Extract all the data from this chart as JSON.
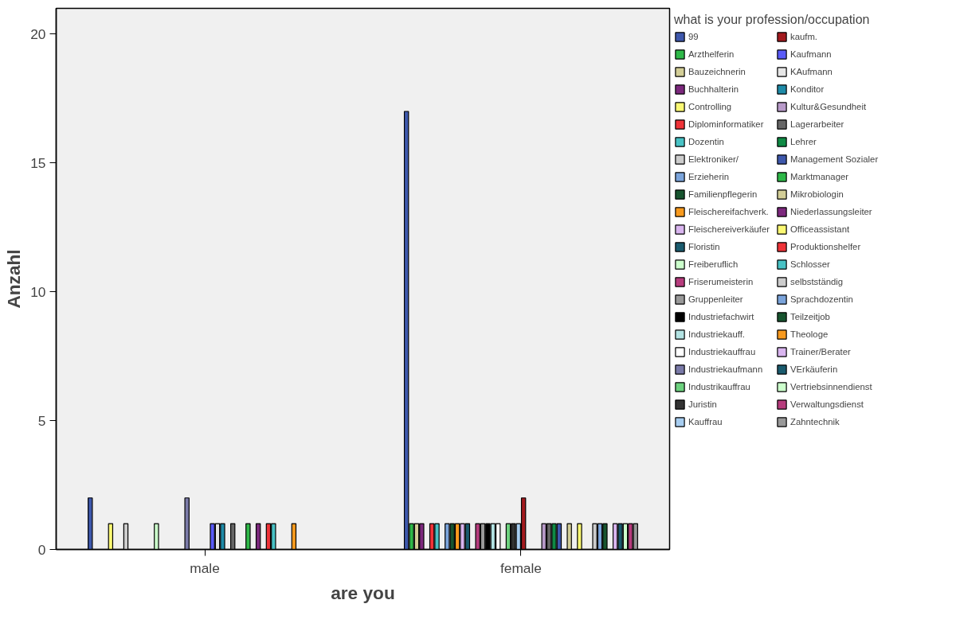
{
  "chart_data": {
    "type": "bar",
    "xlabel": "are you",
    "ylabel": "Anzahl",
    "legend_title": "what is your profession/occupation",
    "legend": "right",
    "categories": [
      "male",
      "female"
    ],
    "ylim": [
      0,
      21
    ],
    "yticks": [
      0,
      5,
      10,
      15,
      20
    ],
    "series": [
      {
        "name": "99",
        "color": "#3e58ac",
        "values": [
          2,
          17
        ]
      },
      {
        "name": "Arzthelferin",
        "color": "#2eb848",
        "values": [
          null,
          1
        ]
      },
      {
        "name": "Bauzeichnerin",
        "color": "#d3ce97",
        "values": [
          null,
          1
        ]
      },
      {
        "name": "Buchhalterin",
        "color": "#7c287d",
        "values": [
          null,
          1
        ]
      },
      {
        "name": "Controlling",
        "color": "#fbf873",
        "values": [
          1,
          null
        ]
      },
      {
        "name": "Diplominformatiker",
        "color": "#ef3338",
        "values": [
          null,
          1
        ]
      },
      {
        "name": "Dozentin",
        "color": "#48c2c5",
        "values": [
          null,
          1
        ]
      },
      {
        "name": "Elektroniker/",
        "color": "#cccccc",
        "values": [
          1,
          null
        ]
      },
      {
        "name": "Erzieherin",
        "color": "#7ba4db",
        "values": [
          null,
          1
        ]
      },
      {
        "name": "Familienpflegerin",
        "color": "#17542f",
        "values": [
          null,
          1
        ]
      },
      {
        "name": "Fleischereifachverk.",
        "color": "#f89a1e",
        "values": [
          null,
          1
        ]
      },
      {
        "name": "Fleischereiverkäufer",
        "color": "#d9b5ef",
        "values": [
          null,
          1
        ]
      },
      {
        "name": "Floristin",
        "color": "#1a5b6e",
        "values": [
          null,
          1
        ]
      },
      {
        "name": "Freiberuflich",
        "color": "#ccffcc",
        "values": [
          1,
          null
        ]
      },
      {
        "name": "Friserumeisterin",
        "color": "#b73c7d",
        "values": [
          null,
          1
        ]
      },
      {
        "name": "Gruppenleiter",
        "color": "#999999",
        "values": [
          null,
          1
        ]
      },
      {
        "name": "Industriefachwirt",
        "color": "#000000",
        "values": [
          null,
          1
        ]
      },
      {
        "name": "Industriekauff.",
        "color": "#b3e3e3",
        "values": [
          null,
          1
        ]
      },
      {
        "name": "Industriekauffrau",
        "color": "#ffffff",
        "values": [
          null,
          1
        ]
      },
      {
        "name": "Industriekaufmann",
        "color": "#7a7aa8",
        "values": [
          2,
          null
        ]
      },
      {
        "name": "Industrikauffrau",
        "color": "#6cd17e",
        "values": [
          null,
          1
        ]
      },
      {
        "name": "Juristin",
        "color": "#333333",
        "values": [
          null,
          1
        ]
      },
      {
        "name": "Kauffrau",
        "color": "#a7cdf0",
        "values": [
          null,
          1
        ]
      },
      {
        "name": "kaufm.",
        "color": "#a31a1e",
        "values": [
          null,
          2
        ]
      },
      {
        "name": "Kaufmann",
        "color": "#5a5bf8",
        "values": [
          1,
          null
        ]
      },
      {
        "name": "KAufmann",
        "color": "#e6e6e6",
        "values": [
          1,
          null
        ]
      },
      {
        "name": "Konditor",
        "color": "#1e8ba8",
        "values": [
          1,
          null
        ]
      },
      {
        "name": "Kultur&Gesundheit",
        "color": "#b89ac9",
        "values": [
          null,
          1
        ]
      },
      {
        "name": "Lagerarbeiter",
        "color": "#666666",
        "values": [
          1,
          1
        ]
      },
      {
        "name": "Lehrer",
        "color": "#0f8a44",
        "values": [
          null,
          1
        ]
      },
      {
        "name": "Management Sozialer",
        "color": "#3e58ac",
        "values": [
          null,
          1
        ]
      },
      {
        "name": "Marktmanager",
        "color": "#2eb848",
        "values": [
          1,
          null
        ]
      },
      {
        "name": "Mikrobiologin",
        "color": "#d3ce97",
        "values": [
          null,
          1
        ]
      },
      {
        "name": "Niederlassungsleiter",
        "color": "#7c287d",
        "values": [
          1,
          null
        ]
      },
      {
        "name": "Officeassistant",
        "color": "#fbf873",
        "values": [
          null,
          1
        ]
      },
      {
        "name": "Produktionshelfer",
        "color": "#ef3338",
        "values": [
          1,
          null
        ]
      },
      {
        "name": "Schlosser",
        "color": "#48c2c5",
        "values": [
          1,
          null
        ]
      },
      {
        "name": "selbstständig",
        "color": "#cccccc",
        "values": [
          null,
          1
        ]
      },
      {
        "name": "Sprachdozentin",
        "color": "#7ba4db",
        "values": [
          null,
          1
        ]
      },
      {
        "name": "Teilzeitjob",
        "color": "#17542f",
        "values": [
          null,
          1
        ]
      },
      {
        "name": "Theologe",
        "color": "#f89a1e",
        "values": [
          1,
          null
        ]
      },
      {
        "name": "Trainer/Berater",
        "color": "#d9b5ef",
        "values": [
          null,
          1
        ]
      },
      {
        "name": "VErkäuferin",
        "color": "#1a5b6e",
        "values": [
          null,
          1
        ]
      },
      {
        "name": "Vertriebsinnendienst",
        "color": "#ccffcc",
        "values": [
          null,
          1
        ]
      },
      {
        "name": "Verwaltungsdienst",
        "color": "#b73c7d",
        "values": [
          null,
          1
        ]
      },
      {
        "name": "Zahntechnik",
        "color": "#999999",
        "values": [
          null,
          1
        ]
      }
    ]
  }
}
